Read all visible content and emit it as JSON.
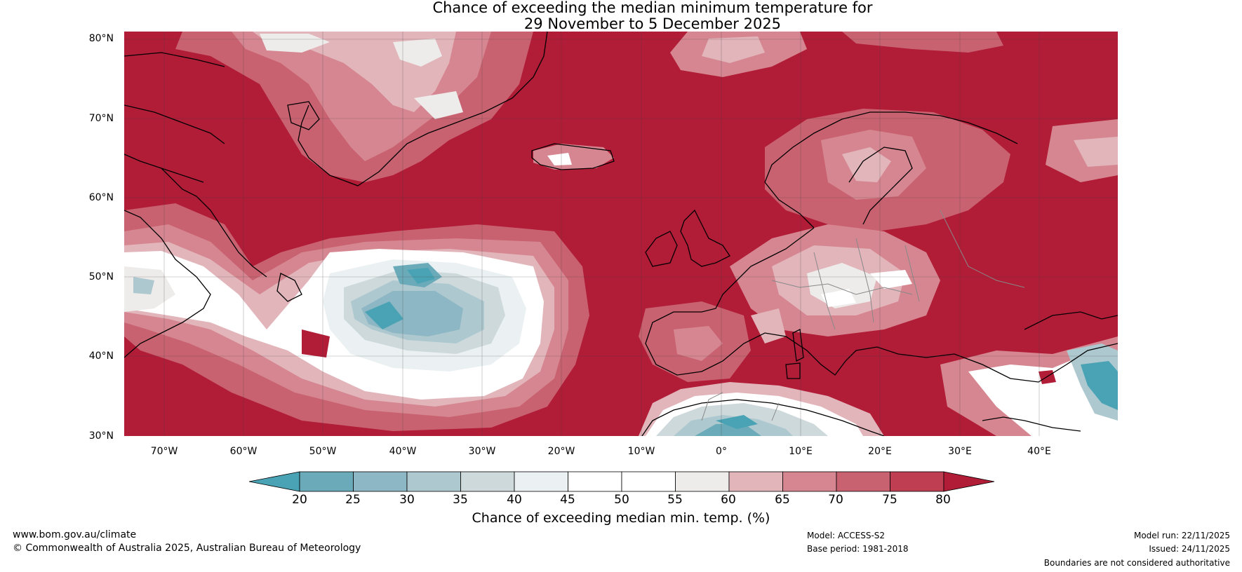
{
  "title": {
    "line1": "Chance of exceeding the median minimum temperature for",
    "line2": "29 November to 5 December 2025"
  },
  "map": {
    "lat_ticks": [
      "80°N",
      "70°N",
      "60°N",
      "50°N",
      "40°N",
      "30°N"
    ],
    "lon_ticks": [
      "70°W",
      "60°W",
      "50°W",
      "40°W",
      "30°W",
      "20°W",
      "10°W",
      "0°",
      "10°E",
      "20°E",
      "30°E",
      "40°E"
    ]
  },
  "colorbar": {
    "labels": [
      "20",
      "25",
      "30",
      "35",
      "40",
      "45",
      "50",
      "55",
      "60",
      "65",
      "70",
      "75",
      "80"
    ],
    "title": "Chance of exceeding median min. temp. (%)",
    "colors": [
      "#4aa3b5",
      "#6babb9",
      "#8db7c4",
      "#adc8ce",
      "#ced9dc",
      "#ebf1f2",
      "#ffffff",
      "#ffffff",
      "#eeeceb",
      "#e2b5bb",
      "#d68690",
      "#c96270",
      "#bf3e52",
      "#b11c37"
    ]
  },
  "footer": {
    "website": "www.bom.gov.au/climate",
    "copyright": "© Commonwealth of Australia 2025, Australian Bureau of Meteorology",
    "model": "Model: ACCESS-S2",
    "base_period": "Base period: 1981-2018",
    "model_run": "Model run: 22/11/2025",
    "issued": "Issued: 24/11/2025",
    "disclaimer": "Boundaries are not considered authoritative"
  }
}
